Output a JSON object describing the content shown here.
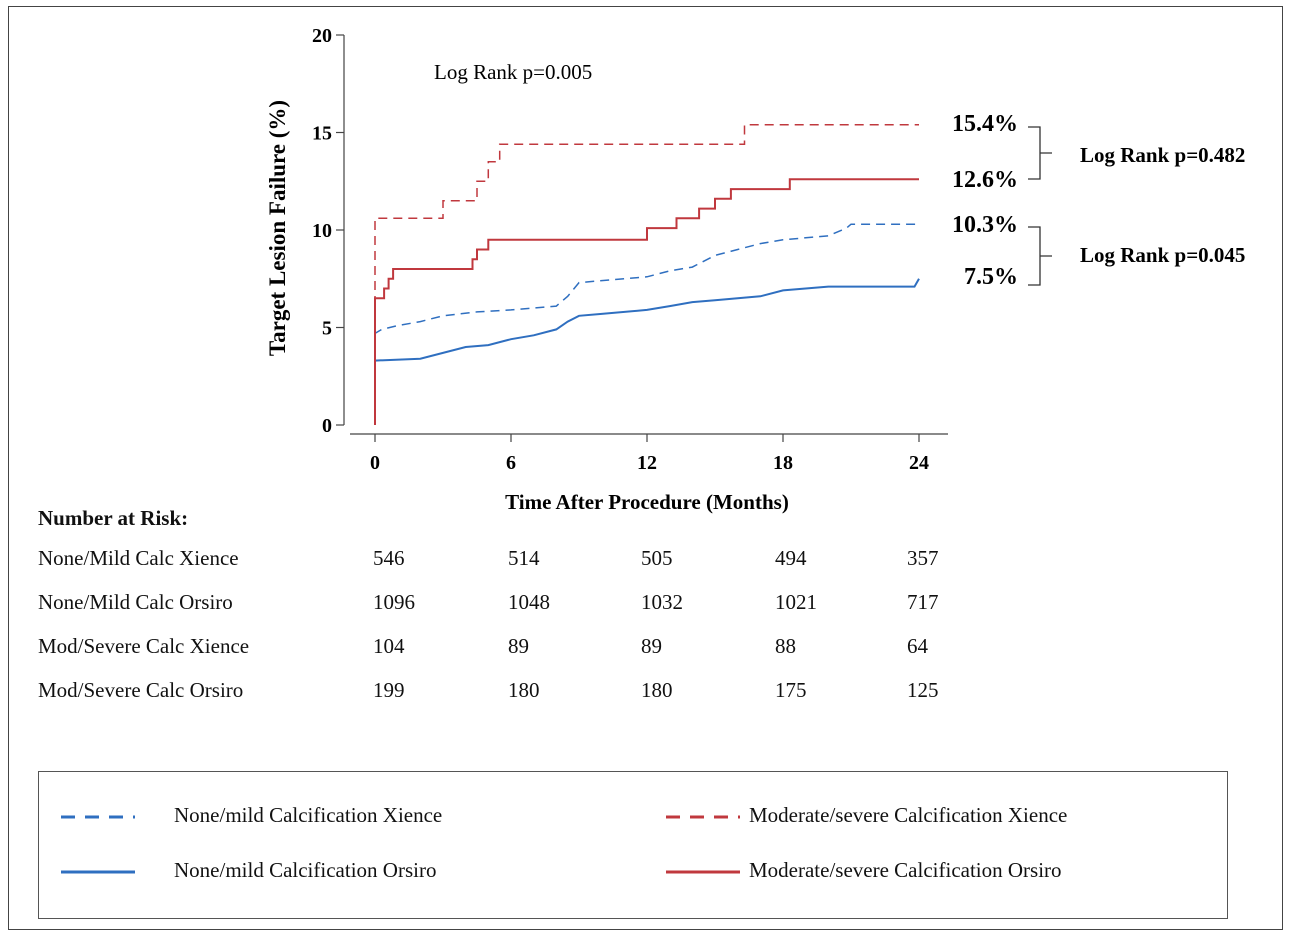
{
  "chart_data": {
    "type": "line",
    "subtype": "kaplan-meier",
    "ylabel": "Target Lesion Failure (%)",
    "xlabel": "Time After Procedure (Months)",
    "xlim": [
      0,
      24
    ],
    "ylim": [
      0,
      20
    ],
    "xticks": [
      0,
      6,
      12,
      18,
      24
    ],
    "yticks": [
      0,
      5,
      10,
      15,
      20
    ],
    "grid": false,
    "overall_annotation": "Log Rank p=0.005",
    "series": [
      {
        "name": "None/mild Calcification Xience",
        "color": "#2f6fc0",
        "dash": "dashed",
        "end_label": "10.3%",
        "points": [
          [
            0,
            0
          ],
          [
            0,
            4.7
          ],
          [
            0.3,
            4.9
          ],
          [
            1,
            5.1
          ],
          [
            2,
            5.3
          ],
          [
            3,
            5.6
          ],
          [
            4.5,
            5.8
          ],
          [
            6,
            5.9
          ],
          [
            8,
            6.1
          ],
          [
            8.5,
            6.6
          ],
          [
            9,
            7.3
          ],
          [
            12,
            7.6
          ],
          [
            13,
            7.9
          ],
          [
            14,
            8.1
          ],
          [
            15,
            8.7
          ],
          [
            16,
            9.0
          ],
          [
            17,
            9.3
          ],
          [
            18,
            9.5
          ],
          [
            20,
            9.7
          ],
          [
            20.8,
            10.1
          ],
          [
            21,
            10.3
          ],
          [
            24,
            10.3
          ]
        ]
      },
      {
        "name": "None/mild Calcification Orsiro",
        "color": "#2f6fc0",
        "dash": "solid",
        "end_label": "7.5%",
        "points": [
          [
            0,
            0
          ],
          [
            0,
            3.3
          ],
          [
            2,
            3.4
          ],
          [
            3,
            3.7
          ],
          [
            4,
            4.0
          ],
          [
            5,
            4.1
          ],
          [
            6,
            4.4
          ],
          [
            7,
            4.6
          ],
          [
            8,
            4.9
          ],
          [
            8.5,
            5.3
          ],
          [
            9,
            5.6
          ],
          [
            10,
            5.7
          ],
          [
            12,
            5.9
          ],
          [
            13,
            6.1
          ],
          [
            14,
            6.3
          ],
          [
            15,
            6.4
          ],
          [
            17,
            6.6
          ],
          [
            18,
            6.9
          ],
          [
            20,
            7.1
          ],
          [
            23.8,
            7.1
          ],
          [
            24,
            7.5
          ]
        ]
      },
      {
        "name": "Moderate/severe Calcification Xience",
        "color": "#c0383e",
        "dash": "dashed",
        "end_label": "15.4%",
        "points": [
          [
            0,
            0
          ],
          [
            0,
            10.6
          ],
          [
            3,
            10.6
          ],
          [
            3,
            11.5
          ],
          [
            4.5,
            11.5
          ],
          [
            4.5,
            12.5
          ],
          [
            5,
            12.5
          ],
          [
            5,
            13.5
          ],
          [
            5.5,
            13.5
          ],
          [
            5.5,
            14.4
          ],
          [
            16.3,
            14.4
          ],
          [
            16.3,
            15.4
          ],
          [
            24,
            15.4
          ]
        ]
      },
      {
        "name": "Moderate/severe Calcification Orsiro",
        "color": "#c0383e",
        "dash": "solid",
        "end_label": "12.6%",
        "points": [
          [
            0,
            0
          ],
          [
            0,
            6.5
          ],
          [
            0.4,
            6.5
          ],
          [
            0.4,
            7.0
          ],
          [
            0.6,
            7.0
          ],
          [
            0.6,
            7.5
          ],
          [
            0.8,
            7.5
          ],
          [
            0.8,
            8.0
          ],
          [
            4.3,
            8.0
          ],
          [
            4.3,
            8.5
          ],
          [
            4.5,
            8.5
          ],
          [
            4.5,
            9.0
          ],
          [
            5,
            9.0
          ],
          [
            5,
            9.5
          ],
          [
            6,
            9.5
          ],
          [
            12,
            9.5
          ],
          [
            12,
            10.1
          ],
          [
            13.3,
            10.1
          ],
          [
            13.3,
            10.6
          ],
          [
            14.3,
            10.6
          ],
          [
            14.3,
            11.1
          ],
          [
            15,
            11.1
          ],
          [
            15,
            11.6
          ],
          [
            15.7,
            11.6
          ],
          [
            15.7,
            12.1
          ],
          [
            18.3,
            12.1
          ],
          [
            18.3,
            12.6
          ],
          [
            24,
            12.6
          ]
        ]
      }
    ],
    "pairwise_annotations": [
      {
        "text": "Log Rank p=0.482",
        "between": [
          "15.4%",
          "12.6%"
        ]
      },
      {
        "text": "Log Rank p=0.045",
        "between": [
          "10.3%",
          "7.5%"
        ]
      }
    ]
  },
  "risk_table": {
    "title": "Number at Risk:",
    "rows": [
      {
        "label": "None/Mild Calc Xience",
        "values": [
          "546",
          "514",
          "505",
          "494",
          "357"
        ]
      },
      {
        "label": "None/Mild Calc Orsiro",
        "values": [
          "1096",
          "1048",
          "1032",
          "1021",
          "717"
        ]
      },
      {
        "label": "Mod/Severe Calc Xience",
        "values": [
          "104",
          "89",
          "89",
          "88",
          "64"
        ]
      },
      {
        "label": "Mod/Severe Calc Orsiro",
        "values": [
          "199",
          "180",
          "180",
          "175",
          "125"
        ]
      }
    ]
  },
  "legend": {
    "items": [
      {
        "label": "None/mild Calcification Xience",
        "color": "#2f6fc0",
        "dash": "dashed"
      },
      {
        "label": "Moderate/severe Calcification Xience",
        "color": "#c0383e",
        "dash": "dashed"
      },
      {
        "label": "None/mild Calcification Orsiro",
        "color": "#2f6fc0",
        "dash": "solid"
      },
      {
        "label": "Moderate/severe Calcification Orsiro",
        "color": "#c0383e",
        "dash": "solid"
      }
    ]
  }
}
